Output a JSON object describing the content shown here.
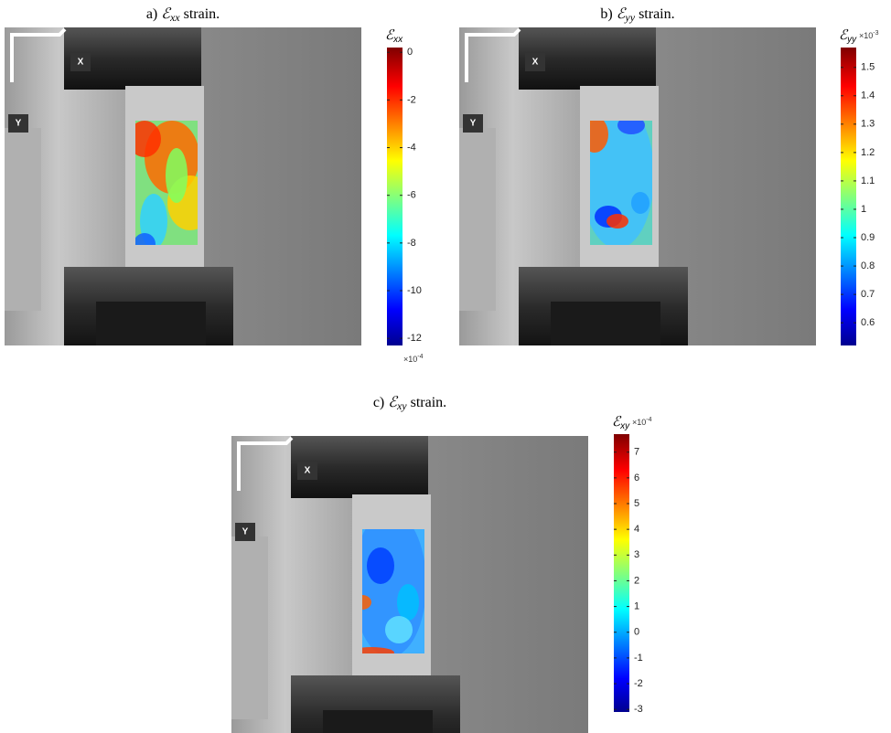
{
  "panels": [
    {
      "caption": {
        "label": "a)",
        "symbol": "ℰ",
        "sub": "xx",
        "text": "strain."
      },
      "image": {
        "x_label": "X",
        "y_label": "Y"
      },
      "colorbar": {
        "symbol": "ℰ",
        "sub": "xx",
        "scale": "×10",
        "exponent": "-4",
        "scale_position": "bottom",
        "lim": [
          -12.3,
          0.2
        ],
        "ticks": [
          0,
          -2,
          -4,
          -6,
          -8,
          -10,
          -12
        ]
      }
    },
    {
      "caption": {
        "label": "b)",
        "symbol": "ℰ",
        "sub": "yy",
        "text": "strain."
      },
      "image": {
        "x_label": "X",
        "y_label": "Y"
      },
      "colorbar": {
        "symbol": "ℰ",
        "sub": "yy",
        "scale": "×10",
        "exponent": "-3",
        "scale_position": "top",
        "lim": [
          0.52,
          1.57
        ],
        "ticks": [
          1.5,
          1.4,
          1.3,
          1.2,
          1.1,
          1,
          0.9,
          0.8,
          0.7,
          0.6
        ]
      }
    },
    {
      "caption": {
        "label": "c)",
        "symbol": "ℰ",
        "sub": "xy",
        "text": "strain."
      },
      "image": {
        "x_label": "X",
        "y_label": "Y"
      },
      "colorbar": {
        "symbol": "ℰ",
        "sub": "xy",
        "scale": "×10",
        "exponent": "-4",
        "scale_position": "top",
        "lim": [
          -3.1,
          7.7
        ],
        "ticks": [
          7,
          6,
          5,
          4,
          3,
          2,
          1,
          0,
          -1,
          -2,
          -3
        ]
      }
    }
  ]
}
